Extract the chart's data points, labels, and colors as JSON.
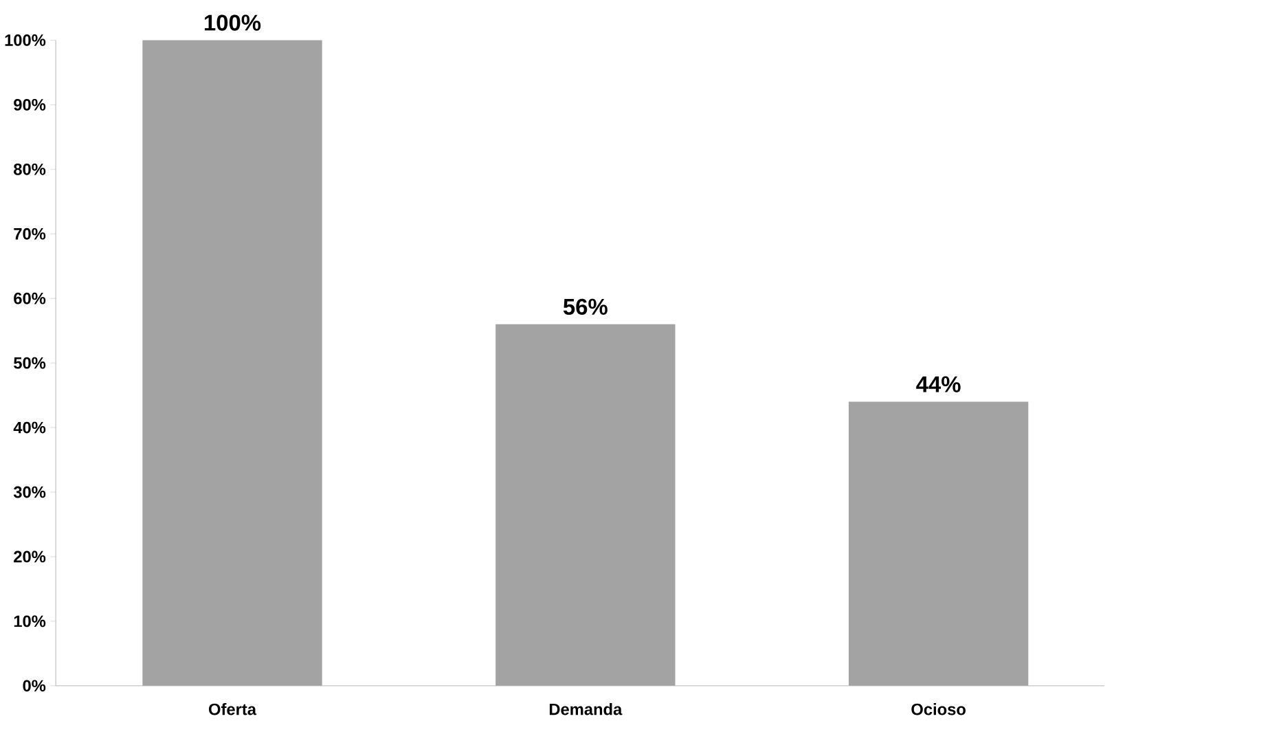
{
  "chart_data": {
    "type": "bar",
    "categories": [
      "Oferta",
      "Demanda",
      "Ocioso"
    ],
    "values": [
      100,
      56,
      44
    ],
    "color": "#a3a3a3",
    "ylim": [
      0,
      100
    ],
    "yticks": [
      {
        "value": 0,
        "label": "0%"
      },
      {
        "value": 10,
        "label": "10%"
      },
      {
        "value": 20,
        "label": "20%"
      },
      {
        "value": 30,
        "label": "30%"
      },
      {
        "value": 40,
        "label": "40%"
      },
      {
        "value": 50,
        "label": "50%"
      },
      {
        "value": 60,
        "label": "60%"
      },
      {
        "value": 70,
        "label": "70%"
      },
      {
        "value": 80,
        "label": "80%"
      },
      {
        "value": 90,
        "label": "90%"
      },
      {
        "value": 100,
        "label": "100%"
      }
    ],
    "value_labels": [
      "100%",
      "56%",
      "44%"
    ]
  }
}
